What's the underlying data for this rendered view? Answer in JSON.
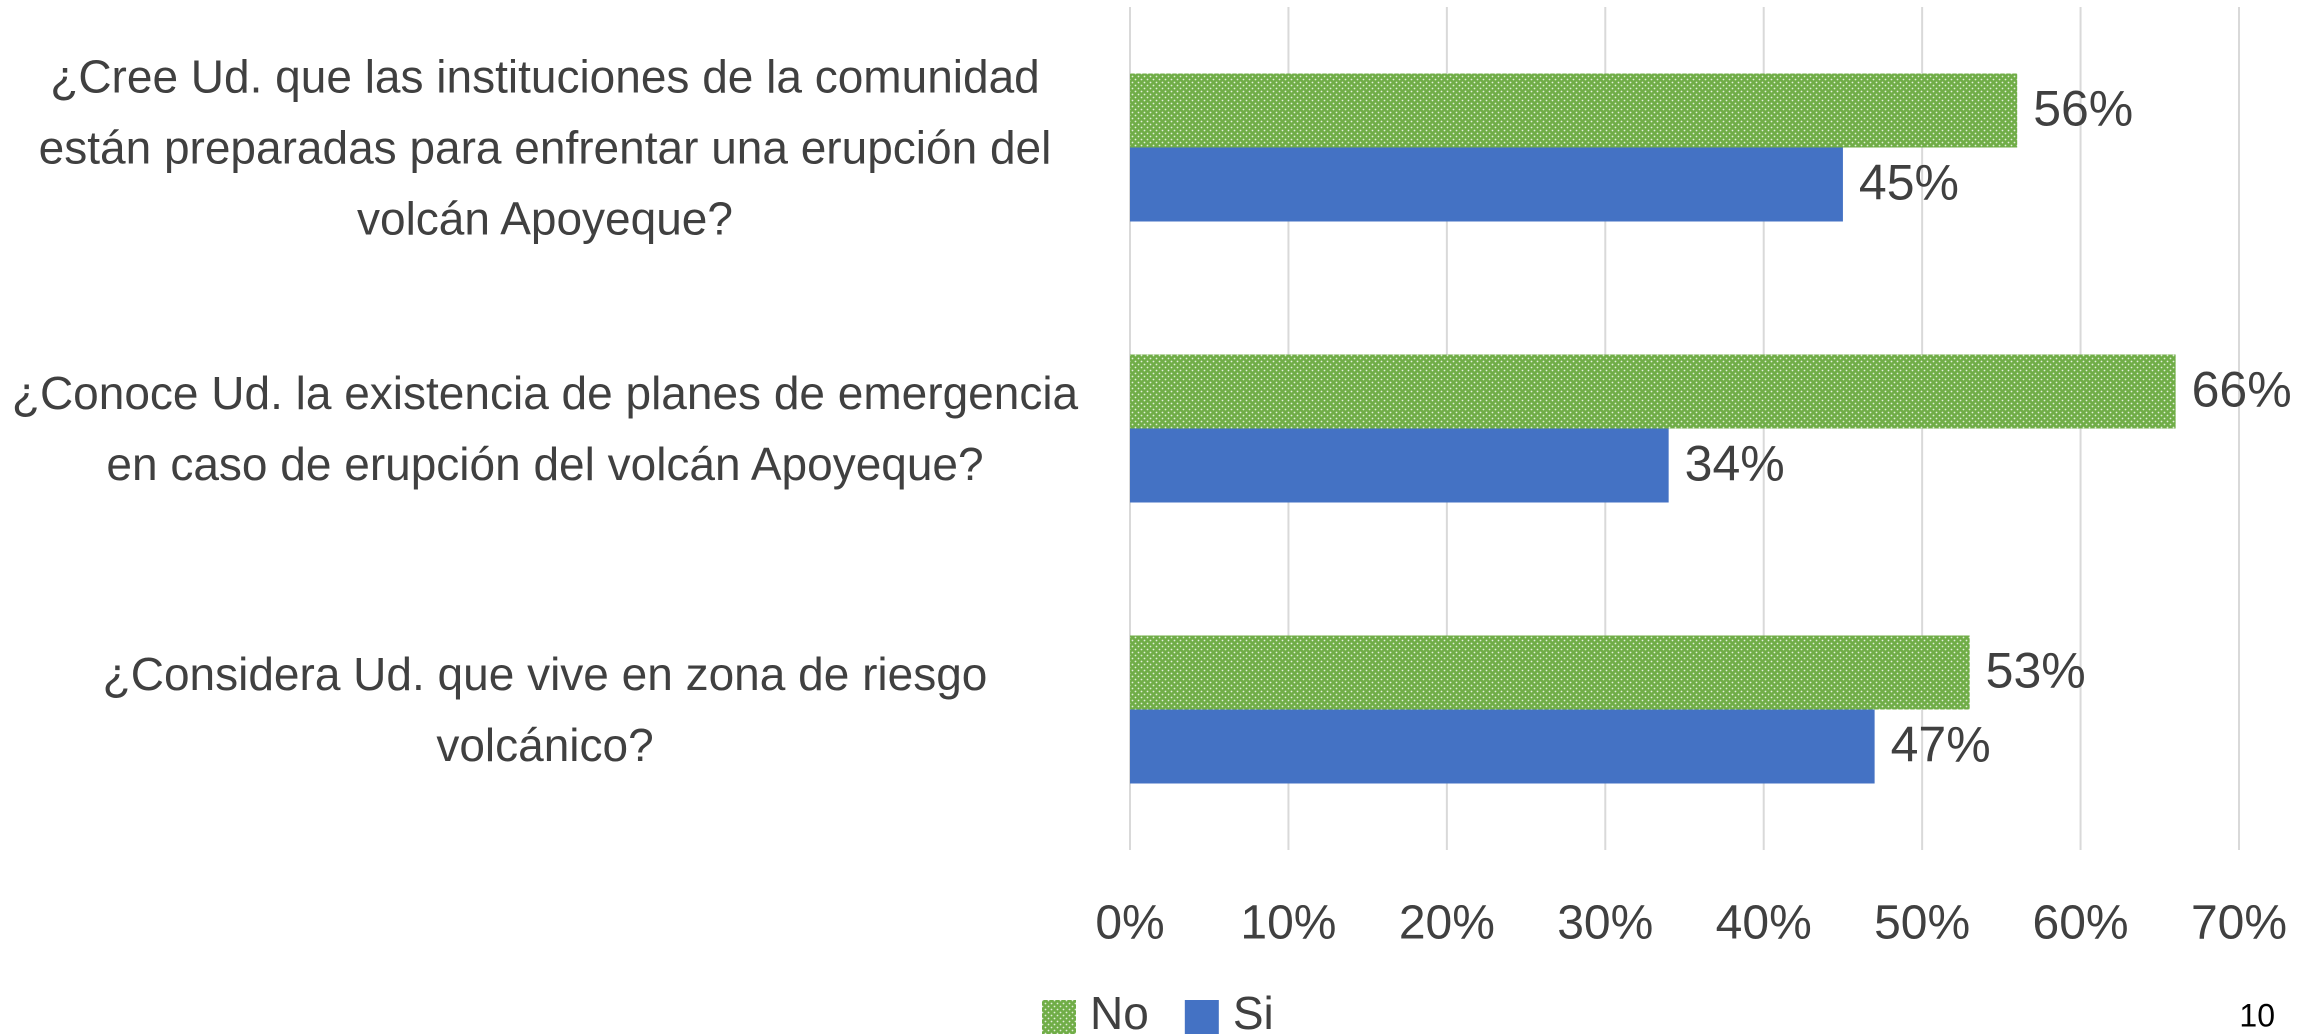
{
  "chart_data": {
    "type": "hbar",
    "categories": [
      "¿Cree Ud. que las instituciones de la comunidad están preparadas para enfrentar una erupción del volcán Apoyeque?",
      "¿Conoce Ud. la existencia de planes de emergencia en caso de erupción del volcán Apoyeque?",
      "¿Considera Ud. que vive en zona de riesgo volcánico?"
    ],
    "series": [
      {
        "name": "No",
        "color": "#70ad47",
        "pattern": "dotted",
        "values": [
          56,
          66,
          53
        ],
        "value_labels": [
          "56%",
          "66%",
          "53%"
        ]
      },
      {
        "name": "Si",
        "color": "#4472c4",
        "values": [
          45,
          34,
          47
        ],
        "value_labels": [
          "45%",
          "34%",
          "47%"
        ]
      }
    ],
    "xlim": [
      0,
      70
    ],
    "xticks": [
      {
        "value": 0,
        "label": "0%"
      },
      {
        "value": 10,
        "label": "10%"
      },
      {
        "value": 20,
        "label": "20%"
      },
      {
        "value": 30,
        "label": "30%"
      },
      {
        "value": 40,
        "label": "40%"
      },
      {
        "value": 50,
        "label": "50%"
      },
      {
        "value": 60,
        "label": "60%"
      },
      {
        "value": 70,
        "label": "70%"
      }
    ],
    "grid": true,
    "legend": "bottom"
  },
  "page_number": "10"
}
